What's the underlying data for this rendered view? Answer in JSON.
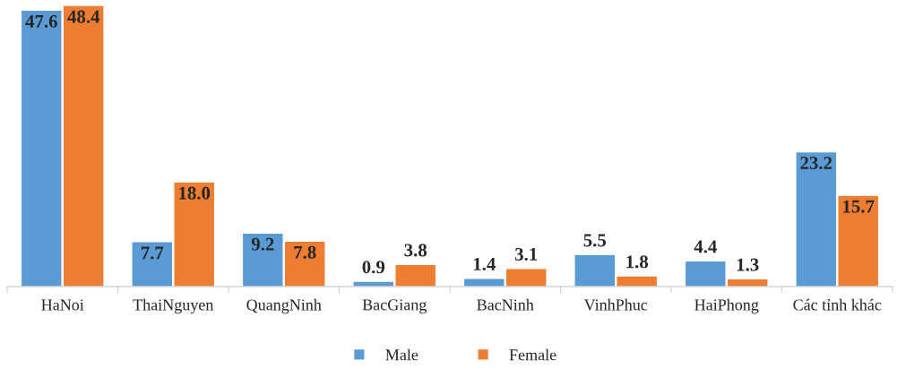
{
  "chart_data": {
    "type": "bar",
    "categories": [
      "HaNoi",
      "ThaiNguyen",
      "QuangNinh",
      "BacGiang",
      "BacNinh",
      "VinhPhuc",
      "HaiPhong",
      "Các tỉnh khác"
    ],
    "series": [
      {
        "name": "Male",
        "color": "#5b9bd5",
        "values": [
          47.6,
          7.7,
          9.2,
          0.9,
          1.4,
          5.5,
          4.4,
          23.2
        ],
        "value_labels": [
          "47.6",
          "7.7",
          "9.2",
          "0.9",
          "1.4",
          "5.5",
          "4.4",
          "23.2"
        ]
      },
      {
        "name": "Female",
        "color": "#ed7d31",
        "values": [
          48.4,
          18.0,
          7.8,
          3.8,
          3.1,
          1.8,
          1.3,
          15.7
        ],
        "value_labels": [
          "48.4",
          "18.0",
          "7.8",
          "3.8",
          "3.1",
          "1.8",
          "1.3",
          "15.7"
        ]
      }
    ],
    "legend": "bottom",
    "grid": false,
    "tick_labels": "x",
    "marker": "square"
  }
}
